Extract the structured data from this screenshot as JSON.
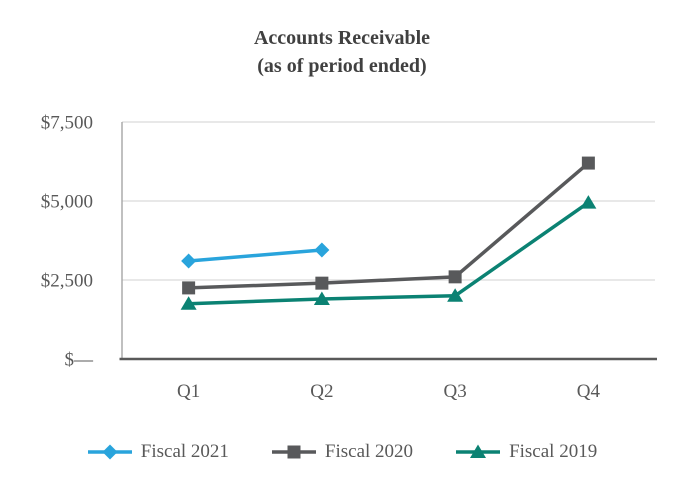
{
  "title": {
    "line1": "Accounts Receivable",
    "line2": "(as of period ended)"
  },
  "colors": {
    "background": "#FFFFFF",
    "title_text": "#404040",
    "axis_text": "#595959",
    "gridline": "#D9D9D9",
    "y_axis_line": "#A6A6A6",
    "x_axis_line": "#595959"
  },
  "chart_data": {
    "type": "line",
    "title": "Accounts Receivable (as of period ended)",
    "xlabel": "",
    "ylabel": "",
    "categories": [
      "Q1",
      "Q2",
      "Q3",
      "Q4"
    ],
    "series": [
      {
        "name": "Fiscal 2021",
        "color": "#29A4DC",
        "marker": "diamond",
        "values": [
          3100,
          3450,
          null,
          null
        ]
      },
      {
        "name": "Fiscal 2020",
        "color": "#58595B",
        "marker": "square",
        "values": [
          2250,
          2400,
          2600,
          6200
        ]
      },
      {
        "name": "Fiscal 2019",
        "color": "#0B8273",
        "marker": "triangle",
        "values": [
          1750,
          1900,
          2000,
          4950
        ]
      }
    ],
    "ylim": [
      0,
      7500
    ],
    "yticks": [
      {
        "value": 0,
        "label": "$—"
      },
      {
        "value": 2500,
        "label": "$2,500"
      },
      {
        "value": 5000,
        "label": "$5,000"
      },
      {
        "value": 7500,
        "label": "$7,500"
      }
    ],
    "grid": true,
    "legend_position": "bottom"
  }
}
